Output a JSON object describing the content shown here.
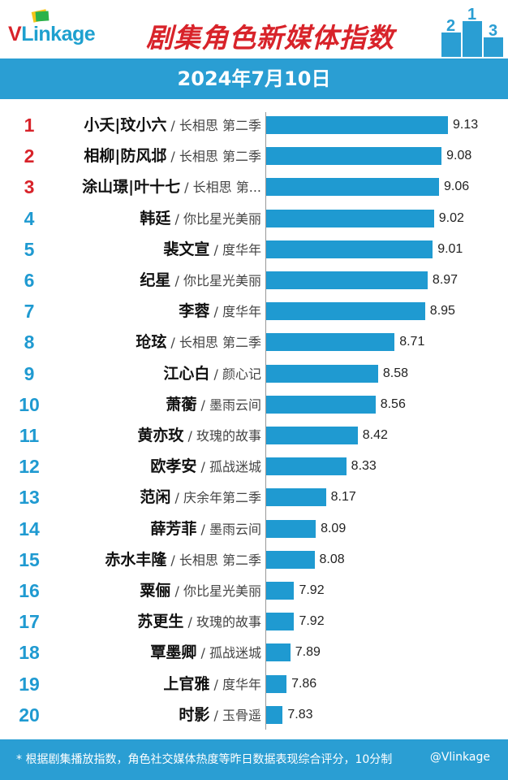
{
  "header": {
    "logo_text": "VLinkage",
    "title": "剧集角色新媒体指数",
    "date": "2024年7月10日"
  },
  "chart_data": {
    "type": "bar",
    "title": "剧集角色新媒体指数",
    "subtitle": "2024年7月10日",
    "orientation": "horizontal",
    "ranks": [
      1,
      2,
      3,
      4,
      5,
      6,
      7,
      8,
      9,
      10,
      11,
      12,
      13,
      14,
      15,
      16,
      17,
      18,
      19,
      20
    ],
    "roles": [
      "小夭|玟小六",
      "相柳|防风邶",
      "涂山璟|叶十七",
      "韩廷",
      "裴文宣",
      "纪星",
      "李蓉",
      "玱玹",
      "江心白",
      "萧蘅",
      "黄亦玫",
      "欧孝安",
      "范闲",
      "薛芳菲",
      "赤水丰隆",
      "粟俪",
      "苏更生",
      "覃墨卿",
      "上官雅",
      "时影"
    ],
    "shows": [
      "长相思 第二季",
      "长相思 第二季",
      "长相思 第...",
      "你比星光美丽",
      "度华年",
      "你比星光美丽",
      "度华年",
      "长相思 第二季",
      "颜心记",
      "墨雨云间",
      "玫瑰的故事",
      "孤战迷城",
      "庆余年第二季",
      "墨雨云间",
      "长相思 第二季",
      "你比星光美丽",
      "玫瑰的故事",
      "孤战迷城",
      "度华年",
      "玉骨遥"
    ],
    "categories": [
      "小夭|玟小六 / 长相思 第二季",
      "相柳|防风邶 / 长相思 第二季",
      "涂山璟|叶十七 / 长相思 第...",
      "韩廷 / 你比星光美丽",
      "裴文宣 / 度华年",
      "纪星 / 你比星光美丽",
      "李蓉 / 度华年",
      "玱玹 / 长相思 第二季",
      "江心白 / 颜心记",
      "萧蘅 / 墨雨云间",
      "黄亦玫 / 玫瑰的故事",
      "欧孝安 / 孤战迷城",
      "范闲 / 庆余年第二季",
      "薛芳菲 / 墨雨云间",
      "赤水丰隆 / 长相思 第二季",
      "粟俪 / 你比星光美丽",
      "苏更生 / 玫瑰的故事",
      "覃墨卿 / 孤战迷城",
      "上官雅 / 度华年",
      "时影 / 玉骨遥"
    ],
    "values": [
      9.13,
      9.08,
      9.06,
      9.02,
      9.01,
      8.97,
      8.95,
      8.71,
      8.58,
      8.56,
      8.42,
      8.33,
      8.17,
      8.09,
      8.08,
      7.92,
      7.92,
      7.89,
      7.86,
      7.83
    ],
    "value_labels": [
      "9.13",
      "9.08",
      "9.06",
      "9.02",
      "9.01",
      "8.97",
      "8.95",
      "8.71",
      "8.58",
      "8.56",
      "8.42",
      "8.33",
      "8.17",
      "8.09",
      "8.08",
      "7.92",
      "7.92",
      "7.89",
      "7.86",
      "7.83"
    ],
    "xlim": [
      7.7,
      9.2
    ],
    "grid": false,
    "bar_color": "#1f9ad1",
    "top_rank_color": "#d8232a",
    "rank_color": "#1f9ad1"
  },
  "footer": {
    "note": "* 根据剧集播放指数，角色社交媒体热度等昨日数据表现综合评分，10分制",
    "watermark": "@Vlinkage"
  }
}
